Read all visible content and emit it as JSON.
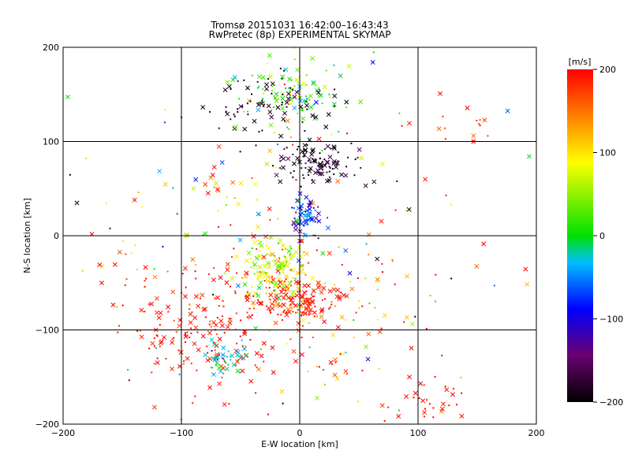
{
  "chart_data": {
    "type": "scatter",
    "title": "Tromsø 20151031 16:42:00–16:43:43",
    "subtitle": "RwPretec (8p) EXPERIMENTAL SKYMAP",
    "xlabel": "E-W location [km]",
    "ylabel": "N-S location [km]",
    "xlim": [
      -200,
      200
    ],
    "ylim": [
      -200,
      200
    ],
    "x_ticks": [
      -200,
      -100,
      0,
      100,
      200
    ],
    "y_ticks": [
      -200,
      -100,
      0,
      100,
      200
    ],
    "grid": true,
    "colorbar": {
      "label": "[m/s]",
      "range": [
        -200,
        200
      ],
      "ticks": [
        200,
        100,
        0,
        -100,
        -200
      ],
      "colormap": "black-purple-blue-cyan-green-yellow-red"
    },
    "markers": [
      "cross",
      "dot"
    ],
    "clusters": [
      {
        "x": 0,
        "y": -65,
        "sx": 18,
        "sy": 14,
        "n": 140,
        "v": 190,
        "vs": 20
      },
      {
        "x": -20,
        "y": -35,
        "sx": 14,
        "sy": 18,
        "n": 150,
        "v": 70,
        "vs": 35
      },
      {
        "x": 5,
        "y": 20,
        "sx": 7,
        "sy": 10,
        "n": 80,
        "v": -80,
        "vs": 40
      },
      {
        "x": 15,
        "y": 78,
        "sx": 15,
        "sy": 12,
        "n": 110,
        "v": -185,
        "vs": 18
      },
      {
        "x": -10,
        "y": 150,
        "sx": 22,
        "sy": 22,
        "n": 110,
        "v": 20,
        "vs": 40
      },
      {
        "x": -25,
        "y": 140,
        "sx": 28,
        "sy": 20,
        "n": 80,
        "v": -190,
        "vs": 10
      },
      {
        "x": -80,
        "y": -100,
        "sx": 32,
        "sy": 35,
        "n": 190,
        "v": 190,
        "vs": 15
      },
      {
        "x": -62,
        "y": -128,
        "sx": 9,
        "sy": 10,
        "n": 40,
        "v": -15,
        "vs": 25
      },
      {
        "x": -60,
        "y": 0,
        "sx": 70,
        "sy": 40,
        "n": 80,
        "v": 120,
        "vs": 100
      },
      {
        "x": 30,
        "y": -110,
        "sx": 35,
        "sy": 30,
        "n": 70,
        "v": 140,
        "vs": 80
      },
      {
        "x": 105,
        "y": -180,
        "sx": 15,
        "sy": 12,
        "n": 30,
        "v": 190,
        "vs": 15
      },
      {
        "x": 0,
        "y": 0,
        "sx": 110,
        "sy": 110,
        "n": 120,
        "v": 60,
        "vs": 150
      },
      {
        "x": 150,
        "y": 115,
        "sx": 25,
        "sy": 8,
        "n": 15,
        "v": 180,
        "vs": 20
      }
    ]
  }
}
